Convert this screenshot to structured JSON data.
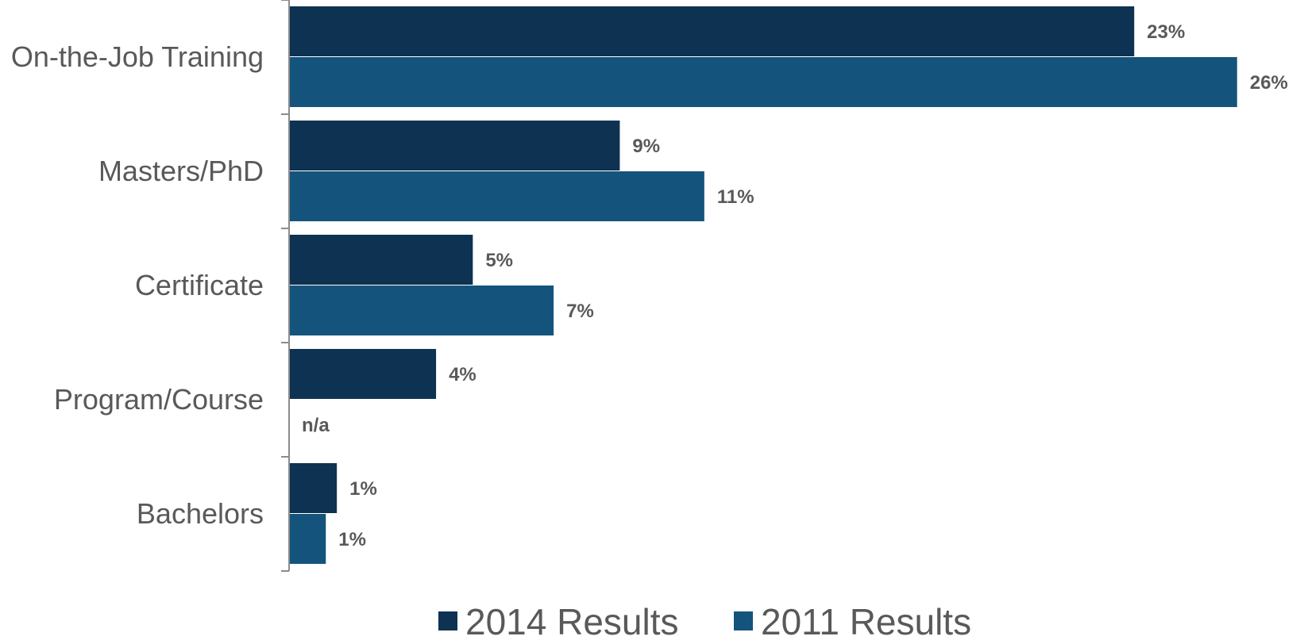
{
  "colors": {
    "series_2014": "#0e3252",
    "series_2011": "#14547c",
    "axis": "#8c8c8c",
    "text": "#595959"
  },
  "chart_data": {
    "type": "bar",
    "orientation": "horizontal",
    "categories": [
      "On-the-Job Training",
      "Masters/PhD",
      "Certificate",
      "Program/Course",
      "Bachelors"
    ],
    "series": [
      {
        "name": "2014 Results",
        "values": [
          23,
          9,
          5,
          4,
          1.3
        ],
        "labels": [
          "23%",
          "9%",
          "5%",
          "4%",
          "1%"
        ]
      },
      {
        "name": "2011 Results",
        "values": [
          25.8,
          11.3,
          7.2,
          null,
          1.0
        ],
        "labels": [
          "26%",
          "11%",
          "7%",
          "n/a",
          "1%"
        ]
      }
    ],
    "xlim": [
      0,
      26.8
    ],
    "grid": false,
    "legend_position": "bottom"
  }
}
